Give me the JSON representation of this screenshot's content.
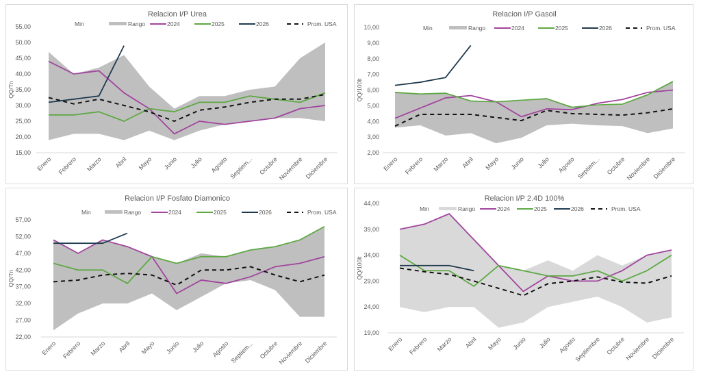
{
  "colors": {
    "range": "#bfbfbf",
    "range_light": "#d9d9d9",
    "y2024": "#a1449e",
    "y2025": "#5ea843",
    "y2026": "#1f3a4e",
    "prom": "#111111",
    "axis": "#595959"
  },
  "chart_data": [
    {
      "id": "urea",
      "type": "line",
      "title": "Relacion I/P Urea",
      "ylabel": "QQ/Tn",
      "xlabel": "",
      "categories": [
        "Enero",
        "Febrero",
        "Marzo",
        "Abril",
        "Mayo",
        "Junio",
        "Julio",
        "Agosto",
        "Septiem...",
        "Octubre",
        "Noviembre",
        "Diciembre"
      ],
      "ylim": [
        15,
        55
      ],
      "yticks": [
        "15,00",
        "20,00",
        "25,00",
        "30,00",
        "35,00",
        "40,00",
        "45,00",
        "50,00",
        "55,00"
      ],
      "ytick_values": [
        15,
        20,
        25,
        30,
        35,
        40,
        45,
        50,
        55
      ],
      "legend": [
        "Min",
        "Rango",
        "2024",
        "2025",
        "2026",
        "Prom. USA"
      ],
      "legend_position": "top",
      "range": {
        "min": [
          19,
          21,
          21,
          19,
          22,
          19,
          22,
          24,
          25,
          26,
          26,
          25
        ],
        "max": [
          47,
          40,
          42,
          46,
          36,
          29,
          33,
          33,
          35,
          36,
          45,
          50
        ]
      },
      "series": [
        {
          "name": "2024",
          "values": [
            44,
            40,
            41,
            34,
            29,
            21,
            25,
            24,
            25,
            26,
            29,
            30
          ]
        },
        {
          "name": "2025",
          "values": [
            27,
            27,
            28,
            25,
            29,
            28,
            31,
            31,
            33,
            32,
            31,
            34
          ]
        },
        {
          "name": "2026",
          "values": [
            31,
            32,
            33,
            49,
            null,
            null,
            null,
            null,
            null,
            null,
            null,
            null
          ]
        },
        {
          "name": "Prom. USA",
          "values": [
            32.5,
            30.5,
            32,
            30,
            28,
            25,
            28.5,
            29.5,
            31,
            32,
            32,
            33.5
          ]
        }
      ]
    },
    {
      "id": "gasoil",
      "type": "line",
      "title": "Relacion I/P Gasoil",
      "ylabel": "QQ/100lt",
      "xlabel": "",
      "categories": [
        "Enero",
        "Febrero",
        "Marzo",
        "Abril",
        "Mayo",
        "Junio",
        "Julio",
        "Agosto",
        "Septiem...",
        "Octubre",
        "Noviembre",
        "Diciembre"
      ],
      "ylim": [
        2,
        10
      ],
      "yticks": [
        "2,00",
        "3,00",
        "4,00",
        "5,00",
        "6,00",
        "7,00",
        "8,00",
        "9,00",
        "10,00"
      ],
      "ytick_values": [
        2,
        3,
        4,
        5,
        6,
        7,
        8,
        9,
        10
      ],
      "legend": [
        "Min",
        "Rango",
        "2024",
        "2025",
        "2026",
        "Prom. USA"
      ],
      "legend_position": "top",
      "range": {
        "min": [
          3.6,
          3.75,
          3.1,
          3.25,
          2.6,
          2.95,
          3.75,
          3.85,
          3.75,
          3.7,
          3.25,
          3.55
        ],
        "max": [
          5.85,
          5.75,
          5.8,
          5.3,
          5.25,
          5.3,
          5.45,
          4.9,
          5.0,
          5.05,
          5.7,
          6.55
        ]
      },
      "series": [
        {
          "name": "2024",
          "values": [
            4.2,
            4.85,
            5.5,
            5.65,
            5.25,
            4.3,
            4.8,
            4.75,
            5.15,
            5.4,
            5.85,
            6.0
          ]
        },
        {
          "name": "2025",
          "values": [
            5.85,
            5.75,
            5.8,
            5.3,
            5.25,
            5.35,
            5.45,
            4.9,
            5.05,
            5.1,
            5.7,
            6.55
          ]
        },
        {
          "name": "2026",
          "values": [
            6.3,
            6.5,
            6.8,
            8.85,
            null,
            null,
            null,
            null,
            null,
            null,
            null,
            null
          ]
        },
        {
          "name": "Prom. USA",
          "values": [
            3.7,
            4.45,
            4.45,
            4.45,
            4.25,
            4.05,
            4.7,
            4.5,
            4.45,
            4.4,
            4.55,
            4.8
          ]
        }
      ]
    },
    {
      "id": "fosfato",
      "type": "line",
      "title": "Relacion I/P Fosfato Diamonico",
      "ylabel": "QQ/Tn",
      "xlabel": "",
      "categories": [
        "Enero",
        "Febrero",
        "Marzo",
        "Abril",
        "Mayo",
        "Junio",
        "Julio",
        "Agosto",
        "Septiem...",
        "Octubre",
        "Noviembre",
        "Diciembre"
      ],
      "ylim": [
        22,
        57
      ],
      "yticks": [
        "22,00",
        "27,00",
        "32,00",
        "37,00",
        "42,00",
        "47,00",
        "52,00",
        "57,00"
      ],
      "ytick_values": [
        22,
        27,
        32,
        37,
        42,
        47,
        52,
        57
      ],
      "legend": [
        "Min",
        "Rango",
        "2024",
        "2025",
        "2026",
        "Prom. USA"
      ],
      "legend_position": "top",
      "range": {
        "min": [
          24,
          29,
          32,
          32,
          35,
          30,
          34,
          38,
          39,
          36,
          28,
          28
        ],
        "max": [
          51,
          47,
          51,
          49,
          46,
          44,
          47,
          46,
          48,
          49,
          51,
          55
        ]
      },
      "series": [
        {
          "name": "2024",
          "values": [
            51,
            47,
            51,
            49,
            46,
            35,
            39,
            38,
            40,
            43,
            44,
            46
          ]
        },
        {
          "name": "2025",
          "values": [
            44,
            42,
            42,
            38,
            46,
            44,
            46,
            46,
            48,
            49,
            51,
            55
          ]
        },
        {
          "name": "2026",
          "values": [
            50,
            50,
            50,
            53,
            null,
            null,
            null,
            null,
            null,
            null,
            null,
            null
          ]
        },
        {
          "name": "Prom. USA",
          "values": [
            38.5,
            39,
            40.5,
            41,
            40.5,
            37.5,
            42,
            42,
            43,
            40.5,
            38.5,
            40.5
          ]
        }
      ]
    },
    {
      "id": "d24",
      "type": "line",
      "title": "Relacion I/P 2.4D 100%",
      "ylabel": "QQ/100lt",
      "xlabel": "",
      "categories": [
        "Enero",
        "Febrero",
        "Marzo",
        "Abril",
        "Mayo",
        "Junio",
        "Julio",
        "Agosto",
        "Septiembre",
        "Octubre",
        "Noviembre",
        "Diciembre"
      ],
      "ylim": [
        19,
        44
      ],
      "yticks": [
        "19,00",
        "24,00",
        "29,00",
        "34,00",
        "39,00",
        "44,00"
      ],
      "ytick_values": [
        19,
        24,
        29,
        34,
        39,
        44
      ],
      "legend": [
        "Min",
        "Rango",
        "2024",
        "2025",
        "2026",
        "Prom. USA"
      ],
      "legend_position": "top",
      "range": {
        "min": [
          24,
          23,
          24,
          24,
          20,
          21,
          24,
          25,
          26,
          24,
          21,
          22
        ],
        "max": [
          39,
          40,
          42,
          37,
          32,
          31,
          33,
          31,
          34,
          32,
          34,
          35
        ]
      },
      "series": [
        {
          "name": "2024",
          "values": [
            39,
            40,
            42,
            37,
            32,
            27,
            30,
            29,
            29,
            31,
            34,
            35
          ]
        },
        {
          "name": "2025",
          "values": [
            34,
            31,
            31,
            28,
            32,
            31,
            30,
            30,
            31,
            29,
            31,
            34
          ]
        },
        {
          "name": "2026",
          "values": [
            32,
            32,
            32,
            31,
            null,
            null,
            null,
            null,
            null,
            null,
            null,
            null
          ]
        },
        {
          "name": "Prom. USA",
          "values": [
            31.5,
            30.8,
            30.3,
            29,
            27.6,
            26.2,
            28.5,
            29,
            29.8,
            28.8,
            28.6,
            30
          ]
        }
      ]
    }
  ]
}
